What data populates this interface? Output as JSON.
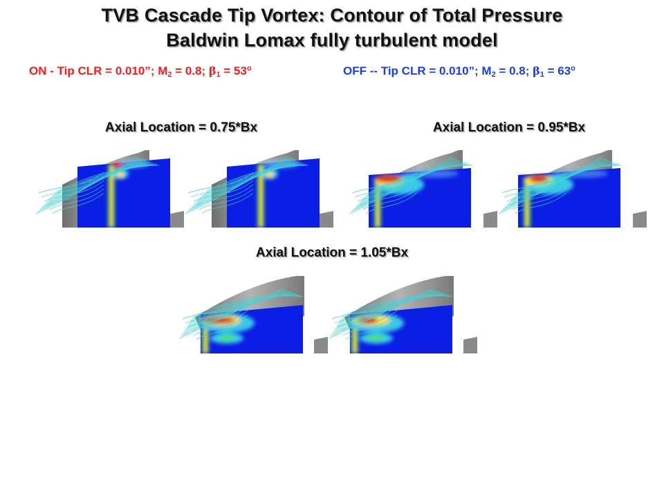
{
  "title": {
    "line1": "TVB Cascade Tip Vortex: Contour of Total Pressure",
    "line2": "Baldwin Lomax fully turbulent model"
  },
  "legend": {
    "on": {
      "prefix": "ON - Tip CLR = 0.010”; M",
      "m_sub": "2",
      "mid": " = 0.8; ",
      "beta": "β",
      "beta_sub": "1",
      "value": " = 53",
      "deg": "o",
      "color": "#ff1a1a"
    },
    "off": {
      "prefix": "OFF -- Tip CLR = 0.010”; M",
      "m_sub": "2",
      "mid": " = 0.8; ",
      "beta": "β",
      "beta_sub": "1",
      "value": " = 63",
      "deg": "o",
      "color": "#1a3cff"
    }
  },
  "locations": {
    "loc_075": "Axial Location = 0.75*Bx",
    "loc_095": "Axial Location = 0.95*Bx",
    "loc_105": "Axial Location = 1.05*Bx"
  },
  "colors": {
    "plane_blue": "#0a1ee6",
    "blade_gray": "#8c8c8c",
    "streamline_cyan": "#3fd6d6",
    "hot": "#e81e1e"
  }
}
